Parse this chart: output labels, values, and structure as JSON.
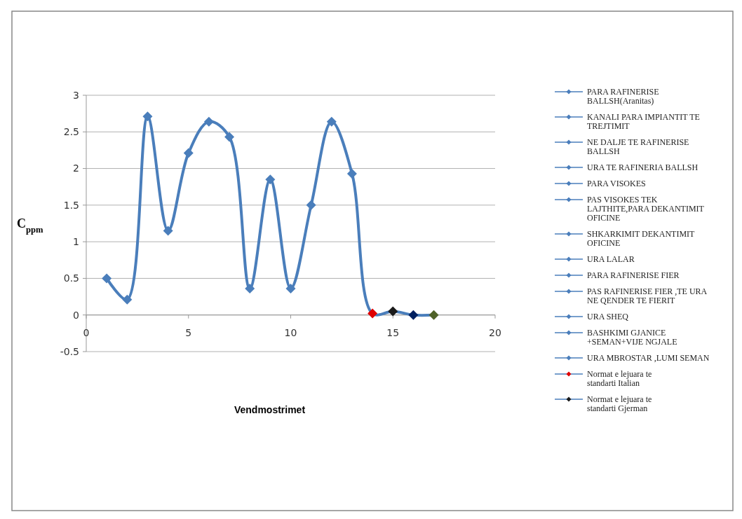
{
  "chart_data": {
    "type": "line",
    "xlabel": "Vendmostrimet",
    "ylabel": "C$_{ppm}$",
    "xlim": [
      0,
      20
    ],
    "xticks": [
      0,
      5,
      10,
      15,
      20
    ],
    "ylim": [
      -0.5,
      3
    ],
    "yticks": [
      -0.5,
      0,
      0.5,
      1,
      1.5,
      2,
      2.5,
      3
    ],
    "grid": "y",
    "legend": "right",
    "marker": "diamond",
    "series": [
      {
        "marker": "none",
        "color": "#4a7ebb",
        "x": [
          1,
          2,
          3,
          4,
          5,
          6,
          7,
          8,
          9,
          10,
          11,
          12,
          13,
          14,
          15,
          16,
          17
        ],
        "values": [
          0.5,
          0.21,
          2.71,
          1.15,
          2.21,
          2.64,
          2.43,
          0.36,
          1.85,
          0.36,
          1.5,
          2.64,
          1.93,
          0.02,
          0.05,
          0,
          0
        ]
      },
      {
        "type": "scatter",
        "name": "PARA RAFINERISE BALLSH(Aranitas)",
        "color": "#4a7ebb",
        "x": [
          1
        ],
        "values": [
          0.5
        ]
      },
      {
        "type": "scatter",
        "name": "KANALI PARA IMPIANTIT TE TREJTIMIT",
        "color": "#4a7ebb",
        "x": [
          2
        ],
        "values": [
          0.21
        ]
      },
      {
        "type": "scatter",
        "name": "NE DALJE TE RAFINERISE BALLSH",
        "color": "#4a7ebb",
        "x": [
          3
        ],
        "values": [
          2.71
        ]
      },
      {
        "type": "scatter",
        "name": "URA TE RAFINERIA BALLSH",
        "color": "#4a7ebb",
        "x": [
          4
        ],
        "values": [
          1.15
        ]
      },
      {
        "type": "scatter",
        "name": "PARA VISOKES",
        "color": "#4a7ebb",
        "x": [
          5
        ],
        "values": [
          2.21
        ]
      },
      {
        "type": "scatter",
        "name": "PAS VISOKES TEK LAJTHITE,PARA DEKANTIMIT OFICINE",
        "color": "#4a7ebb",
        "x": [
          6
        ],
        "values": [
          2.64
        ]
      },
      {
        "type": "scatter",
        "name": "SHKARKIMIT DEKANTIMIT OFICINE",
        "color": "#4a7ebb",
        "x": [
          7
        ],
        "values": [
          2.43
        ]
      },
      {
        "type": "scatter",
        "name": "URA LALAR",
        "color": "#4a7ebb",
        "x": [
          8
        ],
        "values": [
          0.36
        ]
      },
      {
        "type": "scatter",
        "name": "PARA RAFINERISE FIER",
        "color": "#4a7ebb",
        "x": [
          9
        ],
        "values": [
          1.85
        ]
      },
      {
        "type": "scatter",
        "name": "PAS RAFINERISE FIER ,TE URA NE QENDER TE FIERIT",
        "color": "#4a7ebb",
        "x": [
          10
        ],
        "values": [
          0.36
        ]
      },
      {
        "type": "scatter",
        "name": "URA SHEQ",
        "color": "#4a7ebb",
        "x": [
          11
        ],
        "values": [
          1.5
        ]
      },
      {
        "type": "scatter",
        "name": "BASHKIMI GJANICE +SEMAN+VIJE NGJALE",
        "color": "#4a7ebb",
        "x": [
          12
        ],
        "values": [
          2.64
        ]
      },
      {
        "type": "scatter",
        "name": "URA MBROSTAR ,LUMI SEMAN",
        "color": "#4a7ebb",
        "x": [
          13
        ],
        "values": [
          1.93
        ]
      },
      {
        "type": "scatter",
        "name": "Normat e lejuara te standarti Italian",
        "color": "#e00000",
        "x": [
          14
        ],
        "values": [
          0.02
        ]
      },
      {
        "type": "scatter",
        "name": "Normat e lejuara te standarti Gjerman",
        "color": "#1a1a1a",
        "x": [
          15
        ],
        "values": [
          0.05
        ]
      },
      {
        "type": "scatter",
        "color": "#002060",
        "x": [
          16
        ],
        "values": [
          0
        ]
      },
      {
        "type": "scatter",
        "color": "#4f6228",
        "x": [
          17
        ],
        "values": [
          0
        ]
      }
    ]
  }
}
